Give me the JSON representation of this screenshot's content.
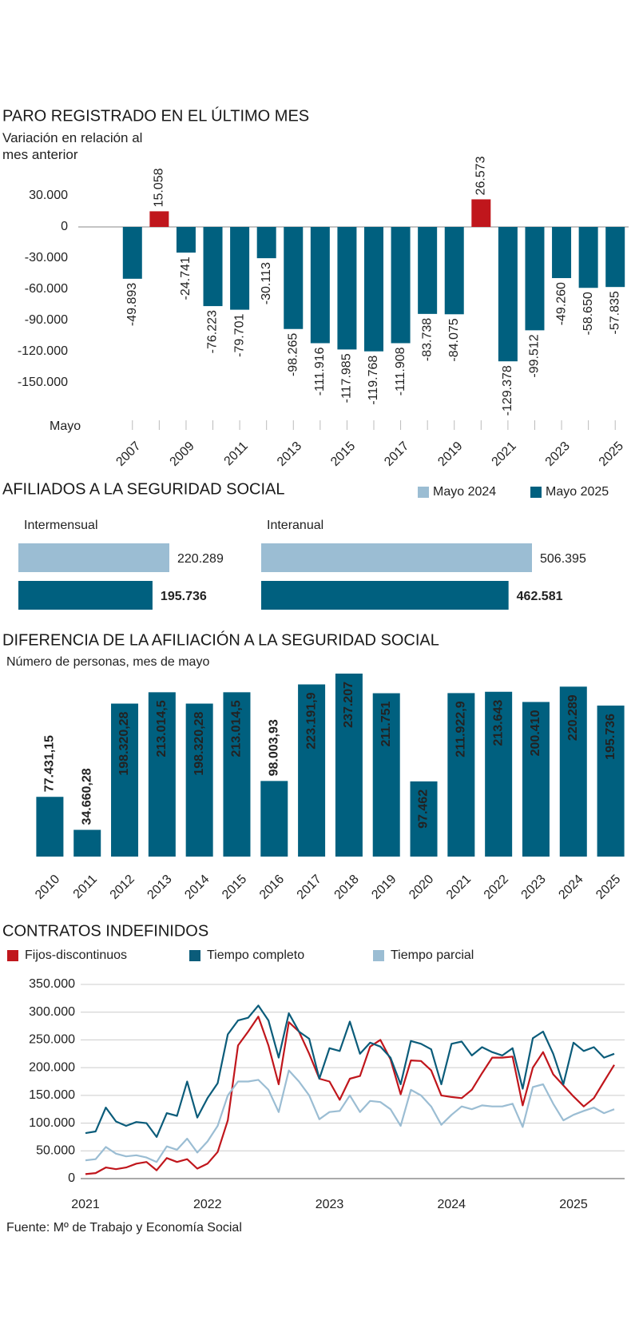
{
  "chart_data": [
    {
      "type": "bar",
      "title": "PARO REGISTRADO EN EL ÚLTIMO MES",
      "subtitle": "Variación en relación al mes anterior",
      "x_label": "Mayo",
      "categories": [
        "2007",
        null,
        "2009",
        null,
        "2011",
        null,
        "2013",
        null,
        "2015",
        null,
        "2017",
        null,
        "2019",
        null,
        "2021",
        null,
        "2023",
        null,
        "2025"
      ],
      "values": [
        -49893,
        15058,
        -24741,
        -76223,
        -79701,
        -30113,
        -98265,
        -111916,
        -117985,
        -119768,
        -111908,
        -83738,
        -84075,
        26573,
        -129378,
        -99512,
        -49260,
        -58650,
        -57835
      ],
      "value_labels": [
        "-49.893",
        "15.058",
        "-24.741",
        "-76.223",
        "-79.701",
        "-30.113",
        "-98.265",
        "-111.916",
        "-117.985",
        "-119.768",
        "-111.908",
        "-83.738",
        "-84.075",
        "26.573",
        "-129.378",
        "-99.512",
        "-49.260",
        "-58.650",
        "-57.835"
      ],
      "colors": [
        "#00607f",
        "#c0161c",
        "#00607f",
        "#00607f",
        "#00607f",
        "#00607f",
        "#00607f",
        "#00607f",
        "#00607f",
        "#00607f",
        "#00607f",
        "#00607f",
        "#00607f",
        "#c0161c",
        "#00607f",
        "#00607f",
        "#00607f",
        "#00607f",
        "#00607f"
      ],
      "ylim": [
        -150000,
        30000
      ],
      "yticks": [
        {
          "value": 30000,
          "label": "30.000"
        },
        0,
        {
          "value": -30000,
          "label": "-30.000"
        },
        {
          "value": -60000,
          "label": "-60.000"
        },
        {
          "value": -90000,
          "label": "-90.000"
        },
        {
          "value": -120000,
          "label": "-120.000"
        },
        {
          "value": -150000,
          "label": "-150.000"
        }
      ]
    },
    {
      "type": "bar",
      "orientation": "horizontal",
      "title": "AFILIADOS A LA SEGURIDAD SOCIAL",
      "categories": [
        "Intermensual",
        "Interanual"
      ],
      "series": [
        {
          "name": "Mayo 2024",
          "color": "#9bbdd3",
          "values": [
            220289,
            506395
          ],
          "value_labels": [
            "220.289",
            "506.395"
          ]
        },
        {
          "name": "Mayo 2025",
          "color": "#00607f",
          "values": [
            195736,
            462581
          ],
          "value_labels": [
            "195.736",
            "462.581"
          ]
        }
      ]
    },
    {
      "type": "bar",
      "title": "DIFERENCIA DE LA AFILIACIÓN A LA SEGURIDAD SOCIAL",
      "subtitle": "Número de personas, mes de mayo",
      "categories": [
        "2010",
        "2011",
        "2012",
        "2013",
        "2014",
        "2015",
        "2016",
        "2017",
        "2018",
        "2019",
        "2020",
        "2021",
        "2022",
        "2023",
        "2024",
        "2025"
      ],
      "values": [
        77431.15,
        34660.28,
        198320.28,
        213014.5,
        198320.28,
        213014.5,
        98003.93,
        223191.9,
        237207,
        211751,
        97462,
        211922.9,
        213643,
        200410,
        220289,
        195736
      ],
      "value_labels": [
        "77.431,15",
        "34.660,28",
        "198.320,28",
        "213.014,5",
        "198.320,28",
        "213.014,5",
        "98.003,93",
        "223.191,9",
        "237.207",
        "211.751",
        "97.462",
        "211.922,9",
        "213.643",
        "200.410",
        "220.289",
        "195.736"
      ],
      "color": "#00607f"
    },
    {
      "type": "line",
      "title": "CONTRATOS INDEFINIDOS",
      "categories": [
        "2021",
        null,
        null,
        null,
        null,
        null,
        null,
        null,
        null,
        null,
        null,
        null,
        "2022",
        null,
        null,
        null,
        null,
        null,
        null,
        null,
        null,
        null,
        null,
        null,
        "2023",
        null,
        null,
        null,
        null,
        null,
        null,
        null,
        null,
        null,
        null,
        null,
        "2024",
        null,
        null,
        null,
        null,
        null,
        null,
        null,
        null,
        null,
        null,
        null,
        "2025",
        null,
        null,
        null,
        null
      ],
      "series": [
        {
          "name": "Fijos-discontinuos",
          "color": "#c0161c",
          "values": [
            8000,
            10000,
            20000,
            17000,
            20000,
            27000,
            30000,
            15000,
            37000,
            30000,
            35000,
            18000,
            27000,
            48000,
            105000,
            240000,
            265000,
            292000,
            240000,
            170000,
            282000,
            265000,
            225000,
            180000,
            175000,
            142000,
            180000,
            185000,
            238000,
            250000,
            215000,
            152000,
            213000,
            212000,
            195000,
            150000,
            147000,
            145000,
            160000,
            190000,
            218000,
            218000,
            220000,
            132000,
            200000,
            228000,
            188000,
            168000,
            148000,
            130000,
            145000,
            175000,
            205000
          ]
        },
        {
          "name": "Tiempo completo",
          "color": "#0b5c7a",
          "values": [
            82000,
            85000,
            128000,
            103000,
            95000,
            102000,
            100000,
            75000,
            118000,
            113000,
            175000,
            110000,
            145000,
            172000,
            260000,
            285000,
            290000,
            312000,
            285000,
            218000,
            298000,
            265000,
            252000,
            180000,
            235000,
            230000,
            283000,
            225000,
            245000,
            238000,
            218000,
            170000,
            248000,
            243000,
            233000,
            170000,
            243000,
            247000,
            222000,
            237000,
            228000,
            222000,
            235000,
            162000,
            253000,
            265000,
            225000,
            170000,
            245000,
            230000,
            237000,
            218000,
            225000
          ]
        },
        {
          "name": "Tiempo parcial",
          "color": "#9bbdd3",
          "values": [
            33000,
            35000,
            57000,
            45000,
            40000,
            42000,
            38000,
            30000,
            58000,
            52000,
            72000,
            47000,
            67000,
            95000,
            150000,
            175000,
            175000,
            178000,
            160000,
            120000,
            195000,
            175000,
            150000,
            107000,
            120000,
            122000,
            150000,
            120000,
            140000,
            138000,
            125000,
            95000,
            160000,
            150000,
            130000,
            97000,
            115000,
            130000,
            125000,
            132000,
            130000,
            130000,
            135000,
            93000,
            165000,
            170000,
            135000,
            105000,
            115000,
            122000,
            128000,
            118000,
            125000
          ]
        }
      ],
      "ylim": [
        0,
        350000
      ],
      "yticks": [
        0,
        {
          "value": 50000,
          "label": "50.000"
        },
        {
          "value": 100000,
          "label": "100.000"
        },
        {
          "value": 150000,
          "label": "150.000"
        },
        {
          "value": 200000,
          "label": "200.000"
        },
        {
          "value": 250000,
          "label": "250.000"
        },
        {
          "value": 300000,
          "label": "300.000"
        },
        {
          "value": 350000,
          "label": "350.000"
        }
      ],
      "grid": true
    }
  ],
  "source": "Fuente: Mº de Trabajo y Economía Social"
}
